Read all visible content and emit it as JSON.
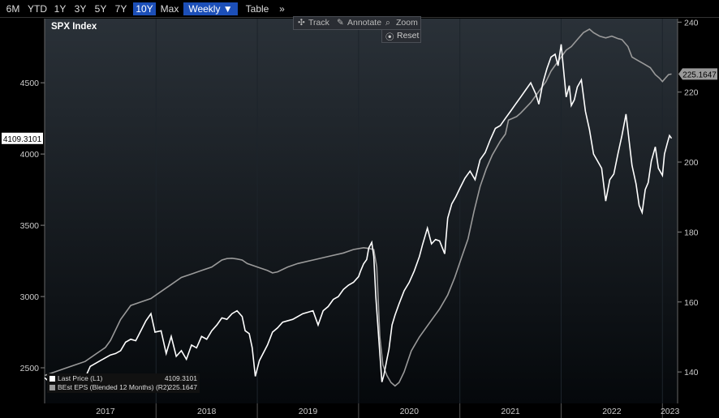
{
  "toolbar": {
    "ranges": [
      "6M",
      "YTD",
      "1Y",
      "3Y",
      "5Y",
      "7Y",
      "10Y",
      "Max"
    ],
    "selected_range": "10Y",
    "frequency_label": "Weekly ▼",
    "table_label": "Table",
    "more_label": "»"
  },
  "chart_tools": {
    "track_label": "Track",
    "annotate_label": "Annotate",
    "zoom_label": "Zoom",
    "reset_label": "Reset"
  },
  "colors": {
    "background_top": "#2a3138",
    "background_bottom": "#05080b",
    "last_price": "#ffffff",
    "eps": "#9a9a9a"
  },
  "legend": {
    "items": [
      {
        "name": "Last Price  (L1)",
        "value": "4109.3101",
        "color": "#ffffff"
      },
      {
        "name": "BEst EPS (Blended 12 Months)  (R2)",
        "value": "225.1647",
        "color": "#9a9a9a"
      }
    ]
  },
  "chart_data": {
    "type": "line",
    "title": "SPX Index",
    "x_axis": {
      "labels": [
        "2017",
        "2018",
        "2019",
        "2020",
        "2021",
        "2022",
        "2023"
      ],
      "range": [
        2016.9,
        2023.15
      ]
    },
    "y_left": {
      "range": [
        2250,
        4950
      ],
      "ticks": [
        2500,
        3000,
        3500,
        4000,
        4500
      ]
    },
    "y_right": {
      "range": [
        131,
        241
      ],
      "ticks": [
        140,
        160,
        180,
        200,
        220,
        240
      ]
    },
    "last_price_label": "4109.3101",
    "eps_label": "225.1647",
    "series": [
      {
        "name": "Last Price",
        "axis": "left",
        "points": [
          [
            2016.9,
            2430
          ],
          [
            2016.95,
            2400
          ],
          [
            2017.0,
            2340
          ],
          [
            2017.05,
            2360
          ],
          [
            2017.1,
            2350
          ],
          [
            2017.15,
            2430
          ],
          [
            2017.2,
            2440
          ],
          [
            2017.3,
            2430
          ],
          [
            2017.35,
            2510
          ],
          [
            2017.45,
            2550
          ],
          [
            2017.55,
            2590
          ],
          [
            2017.6,
            2600
          ],
          [
            2017.65,
            2620
          ],
          [
            2017.7,
            2680
          ],
          [
            2017.75,
            2700
          ],
          [
            2017.8,
            2690
          ],
          [
            2017.85,
            2760
          ],
          [
            2017.9,
            2830
          ],
          [
            2017.95,
            2880
          ],
          [
            2017.99,
            2750
          ],
          [
            2018.05,
            2760
          ],
          [
            2018.1,
            2600
          ],
          [
            2018.15,
            2720
          ],
          [
            2018.2,
            2580
          ],
          [
            2018.25,
            2620
          ],
          [
            2018.3,
            2560
          ],
          [
            2018.35,
            2660
          ],
          [
            2018.4,
            2640
          ],
          [
            2018.45,
            2720
          ],
          [
            2018.5,
            2700
          ],
          [
            2018.55,
            2760
          ],
          [
            2018.6,
            2800
          ],
          [
            2018.65,
            2850
          ],
          [
            2018.7,
            2840
          ],
          [
            2018.75,
            2880
          ],
          [
            2018.8,
            2900
          ],
          [
            2018.85,
            2860
          ],
          [
            2018.88,
            2760
          ],
          [
            2018.92,
            2740
          ],
          [
            2018.95,
            2640
          ],
          [
            2018.98,
            2440
          ],
          [
            2019.02,
            2550
          ],
          [
            2019.1,
            2660
          ],
          [
            2019.15,
            2750
          ],
          [
            2019.2,
            2780
          ],
          [
            2019.25,
            2820
          ],
          [
            2019.35,
            2840
          ],
          [
            2019.45,
            2880
          ],
          [
            2019.55,
            2900
          ],
          [
            2019.6,
            2800
          ],
          [
            2019.65,
            2900
          ],
          [
            2019.7,
            2930
          ],
          [
            2019.75,
            2980
          ],
          [
            2019.8,
            3000
          ],
          [
            2019.85,
            3050
          ],
          [
            2019.9,
            3080
          ],
          [
            2019.95,
            3100
          ],
          [
            2020.0,
            3140
          ],
          [
            2020.02,
            3180
          ],
          [
            2020.05,
            3230
          ],
          [
            2020.08,
            3260
          ],
          [
            2020.1,
            3340
          ],
          [
            2020.13,
            3380
          ],
          [
            2020.15,
            3280
          ],
          [
            2020.17,
            3000
          ],
          [
            2020.2,
            2700
          ],
          [
            2020.23,
            2400
          ],
          [
            2020.25,
            2450
          ],
          [
            2020.28,
            2560
          ],
          [
            2020.3,
            2630
          ],
          [
            2020.33,
            2800
          ],
          [
            2020.36,
            2870
          ],
          [
            2020.4,
            2950
          ],
          [
            2020.45,
            3040
          ],
          [
            2020.5,
            3100
          ],
          [
            2020.55,
            3180
          ],
          [
            2020.6,
            3280
          ],
          [
            2020.63,
            3360
          ],
          [
            2020.68,
            3480
          ],
          [
            2020.72,
            3370
          ],
          [
            2020.76,
            3400
          ],
          [
            2020.8,
            3390
          ],
          [
            2020.85,
            3300
          ],
          [
            2020.88,
            3550
          ],
          [
            2020.92,
            3650
          ],
          [
            2020.96,
            3700
          ],
          [
            2021.0,
            3760
          ],
          [
            2021.05,
            3830
          ],
          [
            2021.1,
            3880
          ],
          [
            2021.15,
            3820
          ],
          [
            2021.2,
            3960
          ],
          [
            2021.25,
            4010
          ],
          [
            2021.3,
            4100
          ],
          [
            2021.35,
            4180
          ],
          [
            2021.4,
            4200
          ],
          [
            2021.45,
            4250
          ],
          [
            2021.5,
            4300
          ],
          [
            2021.55,
            4350
          ],
          [
            2021.6,
            4400
          ],
          [
            2021.65,
            4450
          ],
          [
            2021.7,
            4500
          ],
          [
            2021.75,
            4420
          ],
          [
            2021.78,
            4350
          ],
          [
            2021.82,
            4500
          ],
          [
            2021.86,
            4600
          ],
          [
            2021.9,
            4680
          ],
          [
            2021.94,
            4700
          ],
          [
            2021.97,
            4620
          ],
          [
            2022.0,
            4770
          ],
          [
            2022.02,
            4620
          ],
          [
            2022.05,
            4400
          ],
          [
            2022.08,
            4480
          ],
          [
            2022.1,
            4340
          ],
          [
            2022.13,
            4380
          ],
          [
            2022.16,
            4470
          ],
          [
            2022.2,
            4520
          ],
          [
            2022.24,
            4300
          ],
          [
            2022.28,
            4170
          ],
          [
            2022.32,
            4000
          ],
          [
            2022.36,
            3950
          ],
          [
            2022.4,
            3900
          ],
          [
            2022.44,
            3670
          ],
          [
            2022.48,
            3820
          ],
          [
            2022.52,
            3860
          ],
          [
            2022.56,
            4000
          ],
          [
            2022.6,
            4130
          ],
          [
            2022.64,
            4280
          ],
          [
            2022.67,
            4100
          ],
          [
            2022.7,
            3920
          ],
          [
            2022.74,
            3790
          ],
          [
            2022.77,
            3640
          ],
          [
            2022.8,
            3590
          ],
          [
            2022.83,
            3750
          ],
          [
            2022.86,
            3800
          ],
          [
            2022.89,
            3950
          ],
          [
            2022.93,
            4050
          ],
          [
            2022.96,
            3900
          ],
          [
            2023.0,
            3850
          ],
          [
            2023.02,
            4000
          ],
          [
            2023.05,
            4080
          ],
          [
            2023.07,
            4130
          ],
          [
            2023.09,
            4110
          ]
        ]
      },
      {
        "name": "EPS",
        "axis": "right",
        "points": [
          [
            2016.9,
            139
          ],
          [
            2017.0,
            140
          ],
          [
            2017.1,
            141
          ],
          [
            2017.2,
            142
          ],
          [
            2017.3,
            143
          ],
          [
            2017.4,
            145
          ],
          [
            2017.5,
            147
          ],
          [
            2017.55,
            149
          ],
          [
            2017.6,
            152
          ],
          [
            2017.65,
            155
          ],
          [
            2017.75,
            159
          ],
          [
            2017.85,
            160
          ],
          [
            2017.95,
            161
          ],
          [
            2018.05,
            163
          ],
          [
            2018.15,
            165
          ],
          [
            2018.25,
            167
          ],
          [
            2018.35,
            168
          ],
          [
            2018.45,
            169
          ],
          [
            2018.55,
            170
          ],
          [
            2018.6,
            171
          ],
          [
            2018.65,
            172
          ],
          [
            2018.7,
            172.4
          ],
          [
            2018.75,
            172.5
          ],
          [
            2018.8,
            172.3
          ],
          [
            2018.85,
            172
          ],
          [
            2018.9,
            171
          ],
          [
            2019.0,
            170
          ],
          [
            2019.1,
            169
          ],
          [
            2019.15,
            168.3
          ],
          [
            2019.2,
            168.6
          ],
          [
            2019.3,
            170
          ],
          [
            2019.4,
            171
          ],
          [
            2019.55,
            172
          ],
          [
            2019.7,
            173
          ],
          [
            2019.85,
            174
          ],
          [
            2019.95,
            175
          ],
          [
            2020.05,
            175.5
          ],
          [
            2020.1,
            175.3
          ],
          [
            2020.15,
            175
          ],
          [
            2020.18,
            170
          ],
          [
            2020.21,
            150
          ],
          [
            2020.24,
            142
          ],
          [
            2020.28,
            139
          ],
          [
            2020.32,
            137
          ],
          [
            2020.36,
            136
          ],
          [
            2020.4,
            137
          ],
          [
            2020.45,
            140
          ],
          [
            2020.52,
            146
          ],
          [
            2020.6,
            150
          ],
          [
            2020.7,
            154
          ],
          [
            2020.8,
            158
          ],
          [
            2020.88,
            162
          ],
          [
            2020.95,
            167
          ],
          [
            2021.02,
            173
          ],
          [
            2021.08,
            178
          ],
          [
            2021.14,
            186
          ],
          [
            2021.2,
            193
          ],
          [
            2021.26,
            198
          ],
          [
            2021.32,
            202
          ],
          [
            2021.4,
            206
          ],
          [
            2021.45,
            208
          ],
          [
            2021.48,
            212
          ],
          [
            2021.52,
            212.5
          ],
          [
            2021.56,
            213
          ],
          [
            2021.6,
            214
          ],
          [
            2021.65,
            215.5
          ],
          [
            2021.7,
            217
          ],
          [
            2021.75,
            219
          ],
          [
            2021.8,
            221
          ],
          [
            2021.85,
            223
          ],
          [
            2021.9,
            226
          ],
          [
            2021.95,
            228
          ],
          [
            2022.0,
            230
          ],
          [
            2022.05,
            232
          ],
          [
            2022.1,
            233
          ],
          [
            2022.16,
            235
          ],
          [
            2022.22,
            237
          ],
          [
            2022.28,
            238
          ],
          [
            2022.32,
            237
          ],
          [
            2022.38,
            236
          ],
          [
            2022.44,
            235.5
          ],
          [
            2022.5,
            236
          ],
          [
            2022.56,
            235.3
          ],
          [
            2022.6,
            235
          ],
          [
            2022.66,
            233
          ],
          [
            2022.7,
            230
          ],
          [
            2022.76,
            229
          ],
          [
            2022.82,
            228
          ],
          [
            2022.88,
            227
          ],
          [
            2022.93,
            225
          ],
          [
            2022.97,
            224
          ],
          [
            2023.0,
            223
          ],
          [
            2023.03,
            224
          ],
          [
            2023.06,
            225
          ],
          [
            2023.09,
            225.16
          ]
        ]
      }
    ]
  }
}
